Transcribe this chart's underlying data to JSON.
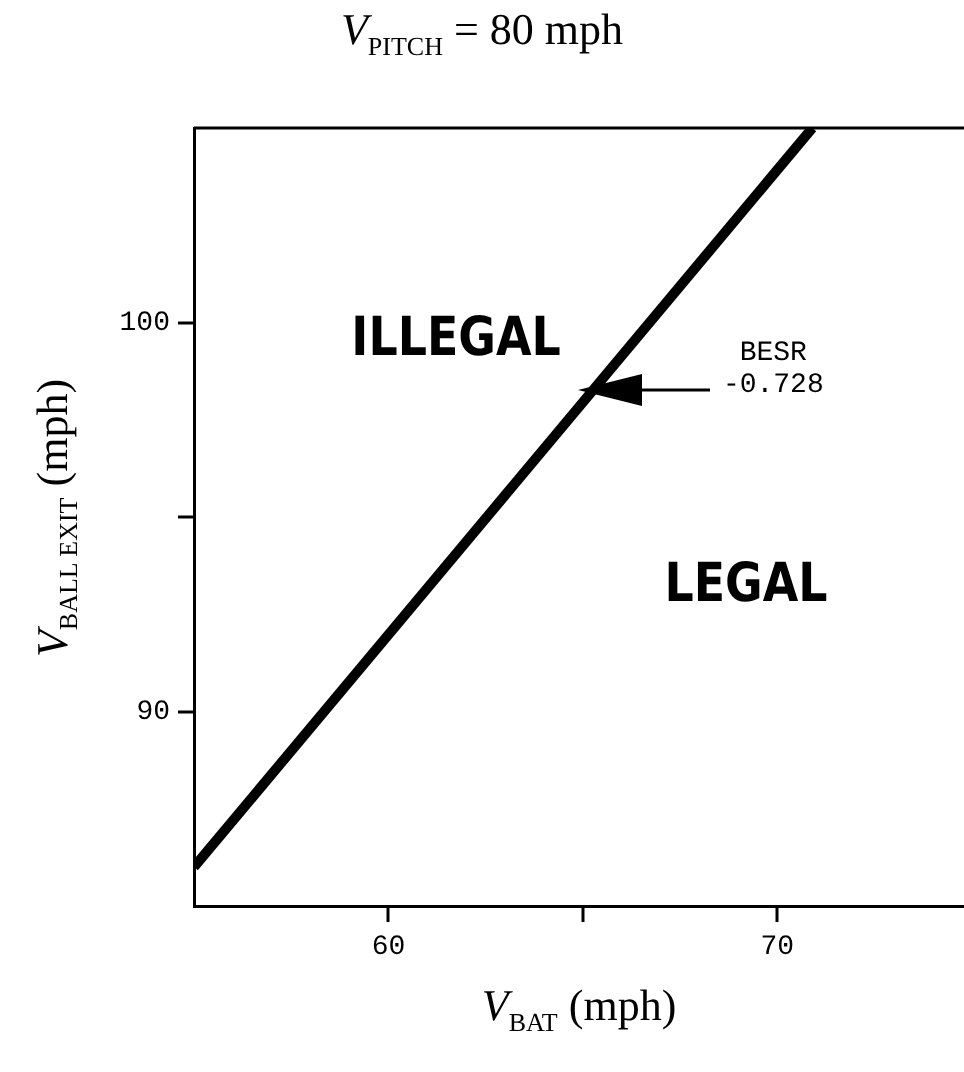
{
  "chart_data": {
    "type": "line",
    "title": "V$_{PITCH}$ = 80 mph",
    "xlabel": "V$_{BAT}$ (mph)",
    "ylabel": "V$_{BALL EXIT}$ (mph)",
    "x": [
      55,
      70.9
    ],
    "series": [
      {
        "color": "#000000",
        "values": [
          86,
          105
        ]
      }
    ],
    "xlim": [
      55,
      74.8
    ],
    "xticks": [
      60,
      {
        "value": 65,
        "label": null
      },
      70
    ],
    "ylim": [
      85,
      105
    ],
    "yticks": [
      90,
      {
        "value": 95,
        "label": null
      },
      100
    ],
    "grid": false,
    "legend": false,
    "marker": "none",
    "line_style": "solid",
    "annotations": [
      "ILLEGAL",
      "LEGAL",
      "BESR\n-0.728"
    ]
  }
}
